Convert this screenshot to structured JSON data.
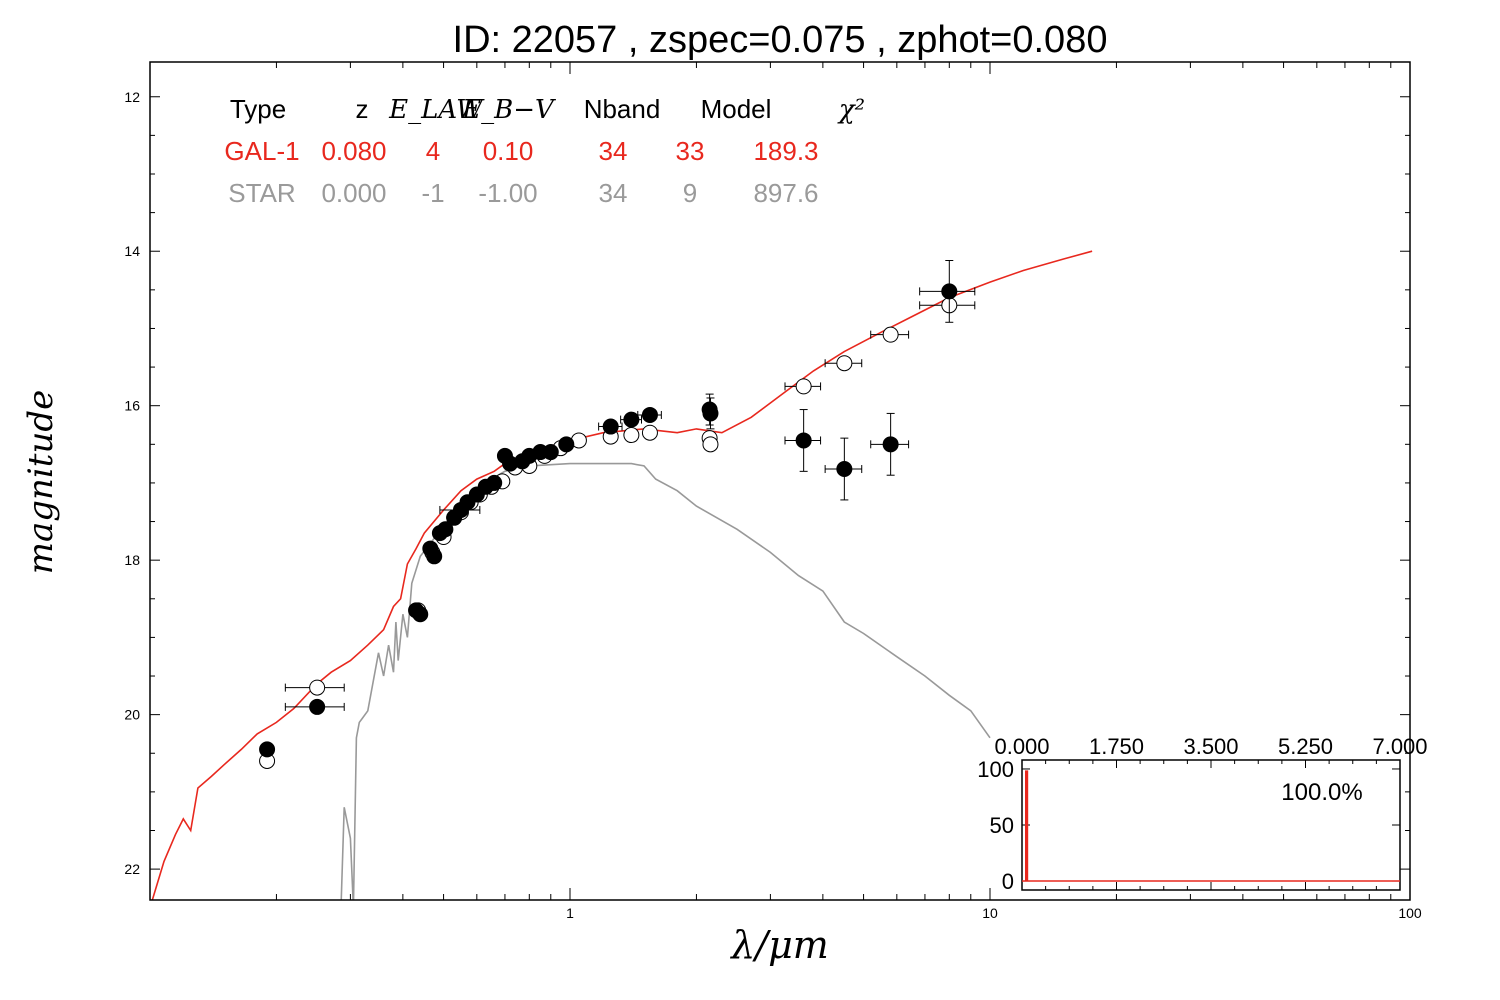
{
  "chart_data": {
    "type": "scatter",
    "title": "ID:  22057 , zspec=0.075 , zphot=0.080",
    "xlabel": "λ/μm",
    "ylabel": "magnitude",
    "x_scale": "log",
    "xlim": [
      0.1,
      100
    ],
    "ylim": [
      22.4,
      11.55
    ],
    "y_inverted": true,
    "x_ticks": [
      "1",
      "10",
      "100"
    ],
    "y_ticks": [
      "12",
      "14",
      "16",
      "18",
      "20",
      "22"
    ],
    "table": {
      "headers": [
        "Type",
        "z",
        "E_LAW",
        "E_B−V",
        "Nband",
        "Model",
        "χ²"
      ],
      "rows": [
        {
          "color": "#e8281e",
          "cells": [
            "GAL-1",
            "0.080",
            "4",
            "0.10",
            "34",
            "33",
            "189.3"
          ]
        },
        {
          "color": "#9a9a9a",
          "cells": [
            "STAR",
            "0.000",
            "-1",
            "-1.00",
            "34",
            "9",
            "897.6"
          ]
        }
      ]
    },
    "series": [
      {
        "name": "GAL-1",
        "kind": "line",
        "color": "#e8281e",
        "x": [
          0.1,
          0.108,
          0.115,
          0.12,
          0.125,
          0.13,
          0.14,
          0.15,
          0.165,
          0.18,
          0.2,
          0.22,
          0.25,
          0.27,
          0.3,
          0.33,
          0.36,
          0.38,
          0.395,
          0.41,
          0.43,
          0.45,
          0.5,
          0.55,
          0.6,
          0.66,
          0.7,
          0.75,
          0.8,
          0.9,
          1.0,
          1.2,
          1.5,
          1.8,
          2.0,
          2.3,
          2.7,
          3.2,
          3.8,
          4.5,
          5.5,
          6.5,
          8.0,
          10.0,
          12.0,
          15.0,
          17.5
        ],
        "y": [
          22.5,
          21.9,
          21.55,
          21.35,
          21.5,
          20.95,
          20.8,
          20.65,
          20.45,
          20.25,
          20.1,
          19.92,
          19.6,
          19.45,
          19.3,
          19.1,
          18.9,
          18.6,
          18.5,
          18.05,
          17.85,
          17.65,
          17.35,
          17.1,
          16.95,
          16.85,
          16.75,
          16.68,
          16.6,
          16.52,
          16.45,
          16.35,
          16.3,
          16.35,
          16.3,
          16.35,
          16.15,
          15.85,
          15.55,
          15.3,
          15.05,
          14.85,
          14.6,
          14.4,
          14.25,
          14.1,
          14.0
        ]
      },
      {
        "name": "STAR",
        "kind": "line",
        "color": "#999999",
        "x": [
          0.285,
          0.29,
          0.3,
          0.305,
          0.31,
          0.315,
          0.32,
          0.33,
          0.35,
          0.36,
          0.37,
          0.38,
          0.385,
          0.39,
          0.4,
          0.41,
          0.42,
          0.44,
          0.47,
          0.5,
          0.55,
          0.6,
          0.65,
          0.7,
          0.8,
          1.0,
          1.2,
          1.4,
          1.5,
          1.6,
          1.8,
          2.0,
          2.5,
          3.0,
          3.5,
          4.0,
          4.5,
          5.0,
          6.0,
          7.0,
          8.0,
          9.0,
          10.0
        ],
        "y": [
          22.5,
          21.2,
          21.6,
          22.5,
          20.3,
          20.1,
          20.05,
          19.95,
          19.2,
          19.5,
          19.1,
          19.45,
          18.8,
          19.3,
          18.7,
          19.0,
          18.3,
          17.95,
          17.75,
          17.55,
          17.3,
          17.1,
          16.95,
          16.85,
          16.78,
          16.75,
          16.75,
          16.75,
          16.78,
          16.95,
          17.1,
          17.3,
          17.6,
          17.9,
          18.2,
          18.4,
          18.8,
          18.95,
          19.25,
          19.5,
          19.75,
          19.95,
          20.3
        ]
      },
      {
        "name": "observed",
        "kind": "points",
        "fill": "#000000",
        "points": [
          {
            "x": 0.19,
            "y": 20.45,
            "xerr": 0.006,
            "yerr": 0.05
          },
          {
            "x": 0.25,
            "y": 19.9,
            "xerr": 0.04,
            "yerr": 0.05
          },
          {
            "x": 0.43,
            "y": 18.65,
            "yerr": 0.05
          },
          {
            "x": 0.44,
            "y": 18.7,
            "yerr": 0.05
          },
          {
            "x": 0.465,
            "y": 17.85,
            "yerr": 0.05
          },
          {
            "x": 0.475,
            "y": 17.95,
            "yerr": 0.05
          },
          {
            "x": 0.49,
            "y": 17.65,
            "yerr": 0.05
          },
          {
            "x": 0.505,
            "y": 17.6,
            "yerr": 0.05
          },
          {
            "x": 0.53,
            "y": 17.45,
            "yerr": 0.05
          },
          {
            "x": 0.55,
            "y": 17.35,
            "xerr": 0.06,
            "yerr": 0.05
          },
          {
            "x": 0.57,
            "y": 17.25,
            "yerr": 0.05
          },
          {
            "x": 0.6,
            "y": 17.15,
            "yerr": 0.05
          },
          {
            "x": 0.63,
            "y": 17.05,
            "yerr": 0.05
          },
          {
            "x": 0.66,
            "y": 17.0,
            "yerr": 0.05
          },
          {
            "x": 0.7,
            "y": 16.65,
            "yerr": 0.05
          },
          {
            "x": 0.72,
            "y": 16.75,
            "yerr": 0.05
          },
          {
            "x": 0.77,
            "y": 16.72,
            "yerr": 0.05
          },
          {
            "x": 0.8,
            "y": 16.65,
            "yerr": 0.05
          },
          {
            "x": 0.85,
            "y": 16.6,
            "yerr": 0.05
          },
          {
            "x": 0.9,
            "y": 16.6,
            "yerr": 0.05
          },
          {
            "x": 0.98,
            "y": 16.5,
            "yerr": 0.05
          },
          {
            "x": 1.25,
            "y": 16.27,
            "xerr": 0.08,
            "yerr": 0.05
          },
          {
            "x": 1.4,
            "y": 16.18,
            "xerr": 0.08,
            "yerr": 0.05
          },
          {
            "x": 1.55,
            "y": 16.12,
            "xerr": 0.1,
            "yerr": 0.05
          },
          {
            "x": 2.15,
            "y": 16.05,
            "yerr": 0.2
          },
          {
            "x": 2.16,
            "y": 16.1,
            "yerr": 0.2
          },
          {
            "x": 3.6,
            "y": 16.45,
            "xerr": 0.35,
            "yerr": 0.4
          },
          {
            "x": 4.5,
            "y": 16.82,
            "xerr": 0.45,
            "yerr": 0.4
          },
          {
            "x": 5.8,
            "y": 16.5,
            "xerr": 0.6,
            "yerr": 0.4
          },
          {
            "x": 8.0,
            "y": 14.52,
            "xerr": 1.2,
            "yerr": 0.4
          }
        ]
      },
      {
        "name": "model",
        "kind": "points",
        "fill": "#ffffff",
        "points": [
          {
            "x": 0.19,
            "y": 20.6,
            "xerr": 0.006
          },
          {
            "x": 0.25,
            "y": 19.65,
            "xerr": 0.04
          },
          {
            "x": 0.435,
            "y": 18.65
          },
          {
            "x": 0.47,
            "y": 17.9
          },
          {
            "x": 0.5,
            "y": 17.7
          },
          {
            "x": 0.53,
            "y": 17.45
          },
          {
            "x": 0.55,
            "y": 17.38
          },
          {
            "x": 0.58,
            "y": 17.25
          },
          {
            "x": 0.61,
            "y": 17.15
          },
          {
            "x": 0.65,
            "y": 17.05
          },
          {
            "x": 0.69,
            "y": 16.98
          },
          {
            "x": 0.74,
            "y": 16.8
          },
          {
            "x": 0.8,
            "y": 16.78
          },
          {
            "x": 0.87,
            "y": 16.65
          },
          {
            "x": 0.95,
            "y": 16.55
          },
          {
            "x": 1.05,
            "y": 16.45
          },
          {
            "x": 1.25,
            "y": 16.4
          },
          {
            "x": 1.4,
            "y": 16.38
          },
          {
            "x": 1.55,
            "y": 16.35
          },
          {
            "x": 2.15,
            "y": 16.42
          },
          {
            "x": 2.16,
            "y": 16.5
          },
          {
            "x": 3.6,
            "y": 15.75,
            "xerr": 0.35
          },
          {
            "x": 4.5,
            "y": 15.45,
            "xerr": 0.45
          },
          {
            "x": 5.8,
            "y": 15.08,
            "xerr": 0.6
          },
          {
            "x": 8.0,
            "y": 14.7,
            "xerr": 1.2
          }
        ]
      }
    ],
    "inset": {
      "type": "line",
      "x_ticks": [
        "0.000",
        "1.750",
        "3.500",
        "5.250",
        "7.000"
      ],
      "y_ticks": [
        "100",
        "50",
        "0"
      ],
      "xlim": [
        0,
        7
      ],
      "ylim": [
        -8,
        108
      ],
      "annotation": "100.0%",
      "color": "#e8281e",
      "x": [
        0,
        0.07,
        0.07,
        0.1,
        0.1,
        7.0
      ],
      "y": [
        0,
        0,
        98,
        98,
        0,
        0
      ]
    }
  }
}
